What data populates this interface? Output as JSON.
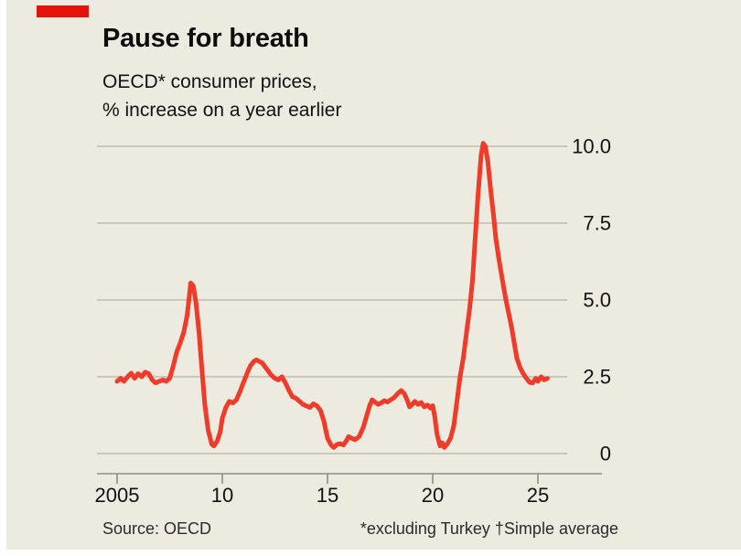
{
  "colors": {
    "background": "#EDEAE0",
    "accent_red": "#E3120B",
    "line_red": "#EE3B2A",
    "grid": "#BFBDB3",
    "axis": "#8F8D84",
    "text": "#121212"
  },
  "header": {
    "title": "Pause for breath",
    "subtitle1": "OECD* consumer prices,",
    "subtitle2": "% increase on a year earlier"
  },
  "footer": {
    "source": "Source: OECD",
    "note": "*excluding Turkey †Simple average"
  },
  "chart_data": {
    "type": "line",
    "title": "Pause for breath",
    "subtitle": "OECD* consumer prices, % increase on a year earlier",
    "xlabel": "",
    "ylabel": "% increase on a year earlier",
    "xlim": [
      2004.8,
      2028.2
    ],
    "ylim": [
      0,
      10.5
    ],
    "grid": true,
    "legend_position": "none",
    "yticks": [
      {
        "v": 0,
        "label": "0"
      },
      {
        "v": 2.5,
        "label": "2.5"
      },
      {
        "v": 5,
        "label": "5.0"
      },
      {
        "v": 7.5,
        "label": "7.5"
      },
      {
        "v": 10,
        "label": "10.0"
      }
    ],
    "xticks": [
      {
        "v": 2005,
        "label": "2005"
      },
      {
        "v": 2010,
        "label": "10"
      },
      {
        "v": 2015,
        "label": "15"
      },
      {
        "v": 2020,
        "label": "20"
      },
      {
        "v": 2025,
        "label": "25"
      }
    ],
    "series": [
      {
        "name": "OECD consumer prices, % increase on a year earlier (excluding Turkey, simple average)",
        "points": [
          [
            2005.0,
            2.35
          ],
          [
            2005.17,
            2.45
          ],
          [
            2005.33,
            2.35
          ],
          [
            2005.5,
            2.5
          ],
          [
            2005.67,
            2.62
          ],
          [
            2005.83,
            2.45
          ],
          [
            2006.0,
            2.6
          ],
          [
            2006.17,
            2.5
          ],
          [
            2006.33,
            2.65
          ],
          [
            2006.5,
            2.6
          ],
          [
            2006.67,
            2.4
          ],
          [
            2006.83,
            2.3
          ],
          [
            2007.0,
            2.35
          ],
          [
            2007.17,
            2.4
          ],
          [
            2007.33,
            2.35
          ],
          [
            2007.5,
            2.45
          ],
          [
            2007.67,
            2.85
          ],
          [
            2007.83,
            3.3
          ],
          [
            2008.0,
            3.6
          ],
          [
            2008.17,
            3.95
          ],
          [
            2008.33,
            4.5
          ],
          [
            2008.5,
            5.55
          ],
          [
            2008.62,
            5.45
          ],
          [
            2008.75,
            4.9
          ],
          [
            2008.9,
            3.9
          ],
          [
            2009.0,
            3.0
          ],
          [
            2009.17,
            1.6
          ],
          [
            2009.33,
            0.75
          ],
          [
            2009.5,
            0.3
          ],
          [
            2009.6,
            0.25
          ],
          [
            2009.75,
            0.4
          ],
          [
            2009.9,
            0.7
          ],
          [
            2010.0,
            1.15
          ],
          [
            2010.17,
            1.5
          ],
          [
            2010.33,
            1.7
          ],
          [
            2010.5,
            1.65
          ],
          [
            2010.67,
            1.75
          ],
          [
            2010.83,
            2.0
          ],
          [
            2011.0,
            2.3
          ],
          [
            2011.17,
            2.6
          ],
          [
            2011.33,
            2.85
          ],
          [
            2011.5,
            3.0
          ],
          [
            2011.62,
            3.05
          ],
          [
            2011.75,
            3.0
          ],
          [
            2011.9,
            2.95
          ],
          [
            2012.0,
            2.85
          ],
          [
            2012.17,
            2.7
          ],
          [
            2012.33,
            2.55
          ],
          [
            2012.5,
            2.45
          ],
          [
            2012.67,
            2.4
          ],
          [
            2012.83,
            2.5
          ],
          [
            2013.0,
            2.3
          ],
          [
            2013.17,
            2.05
          ],
          [
            2013.33,
            1.85
          ],
          [
            2013.5,
            1.8
          ],
          [
            2013.67,
            1.7
          ],
          [
            2013.83,
            1.6
          ],
          [
            2014.0,
            1.55
          ],
          [
            2014.17,
            1.5
          ],
          [
            2014.33,
            1.62
          ],
          [
            2014.5,
            1.55
          ],
          [
            2014.67,
            1.4
          ],
          [
            2014.83,
            1.05
          ],
          [
            2015.0,
            0.5
          ],
          [
            2015.17,
            0.28
          ],
          [
            2015.3,
            0.2
          ],
          [
            2015.45,
            0.3
          ],
          [
            2015.6,
            0.32
          ],
          [
            2015.75,
            0.28
          ],
          [
            2015.9,
            0.42
          ],
          [
            2016.0,
            0.55
          ],
          [
            2016.15,
            0.5
          ],
          [
            2016.3,
            0.45
          ],
          [
            2016.5,
            0.55
          ],
          [
            2016.7,
            0.85
          ],
          [
            2016.85,
            1.2
          ],
          [
            2017.0,
            1.55
          ],
          [
            2017.12,
            1.75
          ],
          [
            2017.25,
            1.68
          ],
          [
            2017.4,
            1.6
          ],
          [
            2017.55,
            1.65
          ],
          [
            2017.7,
            1.72
          ],
          [
            2017.85,
            1.68
          ],
          [
            2018.0,
            1.75
          ],
          [
            2018.17,
            1.82
          ],
          [
            2018.33,
            1.95
          ],
          [
            2018.5,
            2.05
          ],
          [
            2018.65,
            1.95
          ],
          [
            2018.8,
            1.72
          ],
          [
            2018.9,
            1.52
          ],
          [
            2019.0,
            1.58
          ],
          [
            2019.15,
            1.7
          ],
          [
            2019.3,
            1.6
          ],
          [
            2019.45,
            1.66
          ],
          [
            2019.6,
            1.52
          ],
          [
            2019.75,
            1.58
          ],
          [
            2019.9,
            1.48
          ],
          [
            2020.0,
            1.56
          ],
          [
            2020.1,
            1.2
          ],
          [
            2020.2,
            0.65
          ],
          [
            2020.35,
            0.25
          ],
          [
            2020.45,
            0.35
          ],
          [
            2020.55,
            0.2
          ],
          [
            2020.7,
            0.32
          ],
          [
            2020.85,
            0.5
          ],
          [
            2021.0,
            0.9
          ],
          [
            2021.15,
            1.7
          ],
          [
            2021.3,
            2.5
          ],
          [
            2021.45,
            3.1
          ],
          [
            2021.6,
            3.9
          ],
          [
            2021.75,
            4.7
          ],
          [
            2021.9,
            5.7
          ],
          [
            2022.0,
            6.8
          ],
          [
            2022.15,
            8.4
          ],
          [
            2022.3,
            9.7
          ],
          [
            2022.4,
            10.1
          ],
          [
            2022.5,
            10.0
          ],
          [
            2022.62,
            9.5
          ],
          [
            2022.75,
            8.6
          ],
          [
            2022.9,
            7.7
          ],
          [
            2023.0,
            7.0
          ],
          [
            2023.15,
            6.3
          ],
          [
            2023.3,
            5.7
          ],
          [
            2023.45,
            5.1
          ],
          [
            2023.6,
            4.6
          ],
          [
            2023.75,
            4.1
          ],
          [
            2023.9,
            3.5
          ],
          [
            2024.0,
            3.1
          ],
          [
            2024.15,
            2.8
          ],
          [
            2024.3,
            2.6
          ],
          [
            2024.45,
            2.45
          ],
          [
            2024.6,
            2.32
          ],
          [
            2024.75,
            2.3
          ],
          [
            2024.9,
            2.45
          ],
          [
            2025.0,
            2.35
          ],
          [
            2025.15,
            2.5
          ],
          [
            2025.3,
            2.4
          ],
          [
            2025.45,
            2.45
          ]
        ]
      }
    ]
  }
}
